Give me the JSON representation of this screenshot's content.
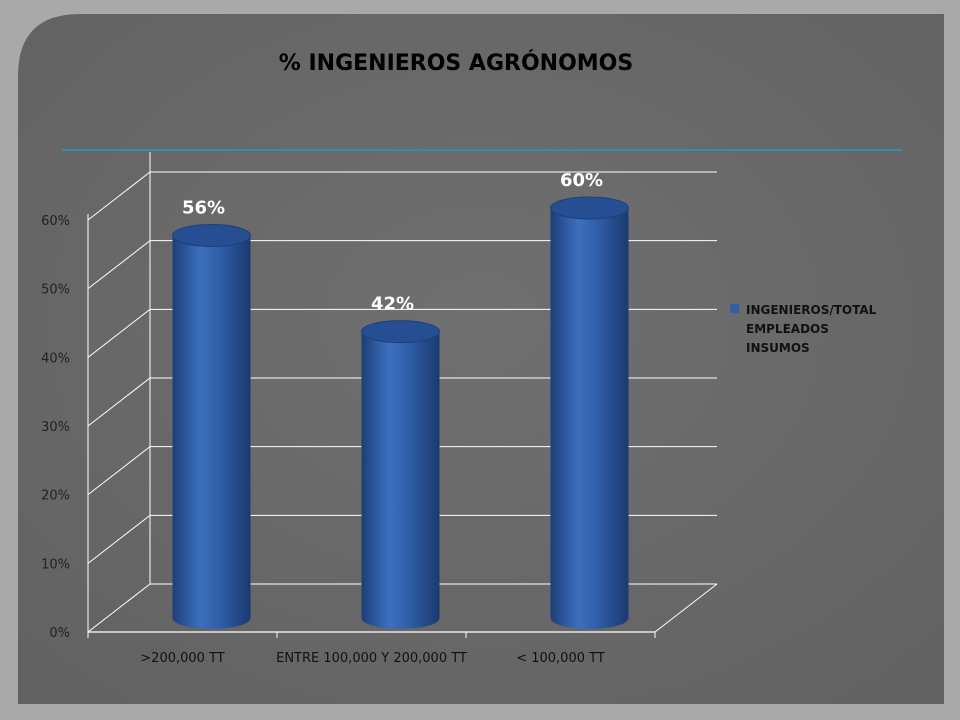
{
  "colors": {
    "background": "#a9a9a9",
    "panel": "#6b6b6b",
    "bar": "#2f5fa8",
    "bar_dark": "#1d3f78",
    "bar_top": "#264f93",
    "gridline": "#ffffff",
    "accent_line": "#2f8fb0"
  },
  "chart_data": {
    "type": "bar",
    "title": "% INGENIEROS AGRÓNOMOS",
    "categories": [
      ">200,000 TT",
      "ENTRE 100,000 Y 200,000 TT",
      "< 100,000 TT"
    ],
    "series": [
      {
        "name": "INGENIEROS/TOTAL EMPLEADOS INSUMOS",
        "legend_lines": [
          "INGENIEROS/TOTAL",
          "EMPLEADOS",
          "INSUMOS"
        ],
        "values": [
          56,
          42,
          60
        ],
        "labels": [
          "56%",
          "42%",
          "60%"
        ]
      }
    ],
    "ylim": [
      0,
      60
    ],
    "yticks": [
      "0%",
      "10%",
      "20%",
      "30%",
      "40%",
      "50%",
      "60%"
    ],
    "grid": true,
    "legend_position": "right",
    "bar_style": "3d-cylinder"
  }
}
